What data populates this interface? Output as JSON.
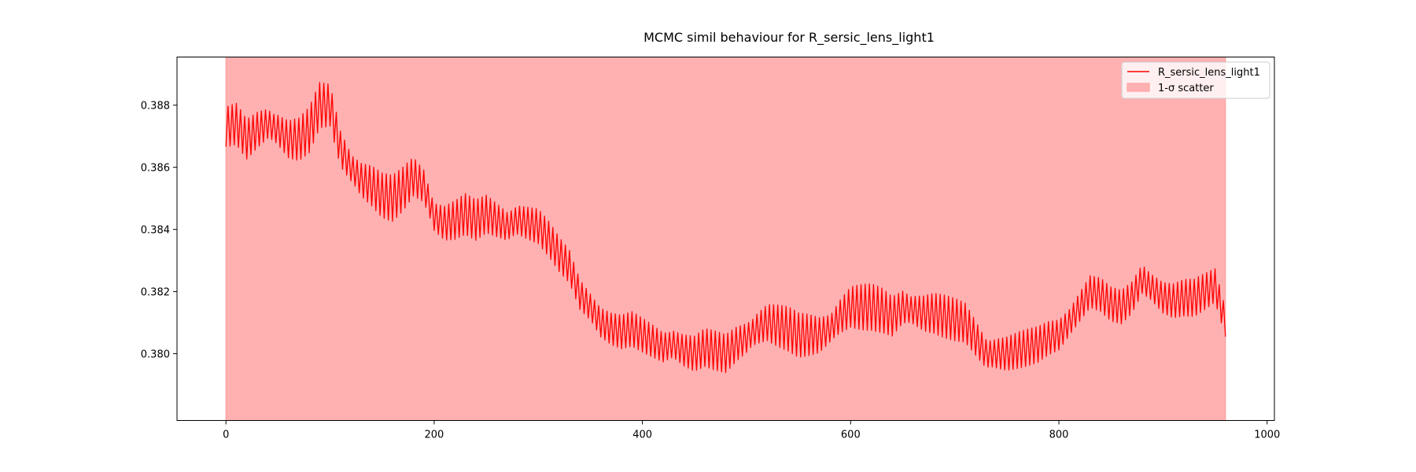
{
  "chart_data": {
    "type": "line",
    "title": "MCMC simil behaviour for R_sersic_lens_light1",
    "xlabel": "",
    "ylabel": "",
    "xlim": [
      -47,
      1007
    ],
    "ylim": [
      0.37785,
      0.38955
    ],
    "x_ticks": [
      0,
      200,
      400,
      600,
      800,
      1000
    ],
    "y_ticks": [
      0.38,
      0.382,
      0.384,
      0.386,
      0.388
    ],
    "x_tick_labels": [
      "0",
      "200",
      "400",
      "600",
      "800",
      "1000"
    ],
    "y_tick_labels": [
      "0.380",
      "0.382",
      "0.384",
      "0.386",
      "0.388"
    ],
    "legend_position": "top-right",
    "grid": false,
    "series": [
      {
        "name": "R_sersic_lens_light1",
        "color": "#ff0000",
        "oscillation_amplitude": 0.00075,
        "points": [
          [
            0,
            0.3873
          ],
          [
            10,
            0.3874
          ],
          [
            20,
            0.3869
          ],
          [
            30,
            0.3872
          ],
          [
            40,
            0.3874
          ],
          [
            50,
            0.3872
          ],
          [
            60,
            0.3869
          ],
          [
            70,
            0.3869
          ],
          [
            80,
            0.3872
          ],
          [
            90,
            0.388
          ],
          [
            100,
            0.388
          ],
          [
            110,
            0.3866
          ],
          [
            120,
            0.386
          ],
          [
            130,
            0.3856
          ],
          [
            140,
            0.3854
          ],
          [
            150,
            0.3851
          ],
          [
            160,
            0.385
          ],
          [
            170,
            0.3853
          ],
          [
            180,
            0.3857
          ],
          [
            190,
            0.3854
          ],
          [
            200,
            0.3844
          ],
          [
            210,
            0.3842
          ],
          [
            220,
            0.3843
          ],
          [
            230,
            0.3845
          ],
          [
            240,
            0.3843
          ],
          [
            250,
            0.3845
          ],
          [
            260,
            0.3843
          ],
          [
            270,
            0.3841
          ],
          [
            280,
            0.3843
          ],
          [
            290,
            0.3842
          ],
          [
            300,
            0.3841
          ],
          [
            310,
            0.3837
          ],
          [
            320,
            0.3832
          ],
          [
            330,
            0.3828
          ],
          [
            340,
            0.3819
          ],
          [
            350,
            0.3815
          ],
          [
            360,
            0.381
          ],
          [
            370,
            0.3808
          ],
          [
            380,
            0.3807
          ],
          [
            390,
            0.3808
          ],
          [
            400,
            0.3806
          ],
          [
            410,
            0.3804
          ],
          [
            420,
            0.3802
          ],
          [
            430,
            0.3803
          ],
          [
            440,
            0.3801
          ],
          [
            450,
            0.38
          ],
          [
            460,
            0.3802
          ],
          [
            470,
            0.3801
          ],
          [
            480,
            0.38
          ],
          [
            490,
            0.3803
          ],
          [
            500,
            0.3805
          ],
          [
            510,
            0.3808
          ],
          [
            520,
            0.381
          ],
          [
            530,
            0.3809
          ],
          [
            540,
            0.3808
          ],
          [
            550,
            0.3806
          ],
          [
            560,
            0.3806
          ],
          [
            570,
            0.3806
          ],
          [
            580,
            0.3808
          ],
          [
            590,
            0.3812
          ],
          [
            600,
            0.3815
          ],
          [
            610,
            0.3815
          ],
          [
            620,
            0.3815
          ],
          [
            630,
            0.3814
          ],
          [
            640,
            0.3812
          ],
          [
            650,
            0.3815
          ],
          [
            660,
            0.3814
          ],
          [
            670,
            0.3813
          ],
          [
            680,
            0.3813
          ],
          [
            690,
            0.3812
          ],
          [
            700,
            0.3811
          ],
          [
            710,
            0.381
          ],
          [
            720,
            0.3805
          ],
          [
            730,
            0.38
          ],
          [
            740,
            0.38
          ],
          [
            750,
            0.38
          ],
          [
            760,
            0.3801
          ],
          [
            770,
            0.3802
          ],
          [
            780,
            0.3803
          ],
          [
            790,
            0.3805
          ],
          [
            800,
            0.3806
          ],
          [
            810,
            0.381
          ],
          [
            820,
            0.3815
          ],
          [
            830,
            0.382
          ],
          [
            840,
            0.3819
          ],
          [
            850,
            0.3816
          ],
          [
            860,
            0.3815
          ],
          [
            870,
            0.3818
          ],
          [
            880,
            0.3824
          ],
          [
            890,
            0.3821
          ],
          [
            900,
            0.3818
          ],
          [
            910,
            0.3817
          ],
          [
            920,
            0.3818
          ],
          [
            930,
            0.3818
          ],
          [
            940,
            0.382
          ],
          [
            950,
            0.3822
          ],
          [
            960,
            0.381
          ]
        ]
      },
      {
        "name": "1-σ scatter",
        "type": "area",
        "color": "#ffb1b2",
        "edge_color": "#ff9999",
        "x_range": [
          0,
          960
        ],
        "y_range": [
          0.37785,
          0.38955
        ]
      }
    ]
  }
}
